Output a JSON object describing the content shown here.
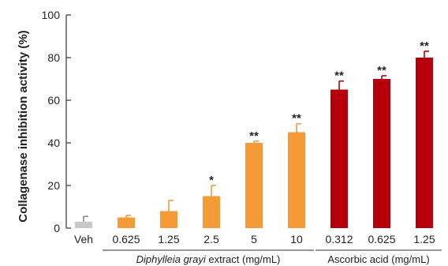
{
  "chart_data": {
    "type": "bar",
    "ylabel": "Collagenase inhibition activity (%)",
    "ylim": [
      0,
      100
    ],
    "yticks": [
      0,
      20,
      40,
      60,
      80,
      100
    ],
    "grid": false,
    "categories": [
      "Veh",
      "0.625",
      "1.25",
      "2.5",
      "5",
      "10",
      "0.312",
      "0.625",
      "1.25"
    ],
    "values": [
      3,
      5,
      8,
      15,
      40,
      45,
      65,
      70,
      80
    ],
    "errors": [
      2.5,
      1,
      5,
      5,
      0.8,
      4,
      4,
      1.5,
      3
    ],
    "significance": [
      "",
      "",
      "",
      "*",
      "**",
      "**",
      "**",
      "**",
      "**"
    ],
    "bar_colors": [
      "#c8c8c8",
      "#f49b37",
      "#f49b37",
      "#f49b37",
      "#f49b37",
      "#f49b37",
      "#b5000c",
      "#b5000c",
      "#b5000c"
    ],
    "groups": [
      {
        "label_italic": "Diphylleia grayi",
        "label_rest": " extract  (mg/mL)",
        "from": 1,
        "to": 5
      },
      {
        "label_italic": "",
        "label_rest": "Ascorbic acid (mg/mL)",
        "from": 6,
        "to": 8
      }
    ]
  }
}
